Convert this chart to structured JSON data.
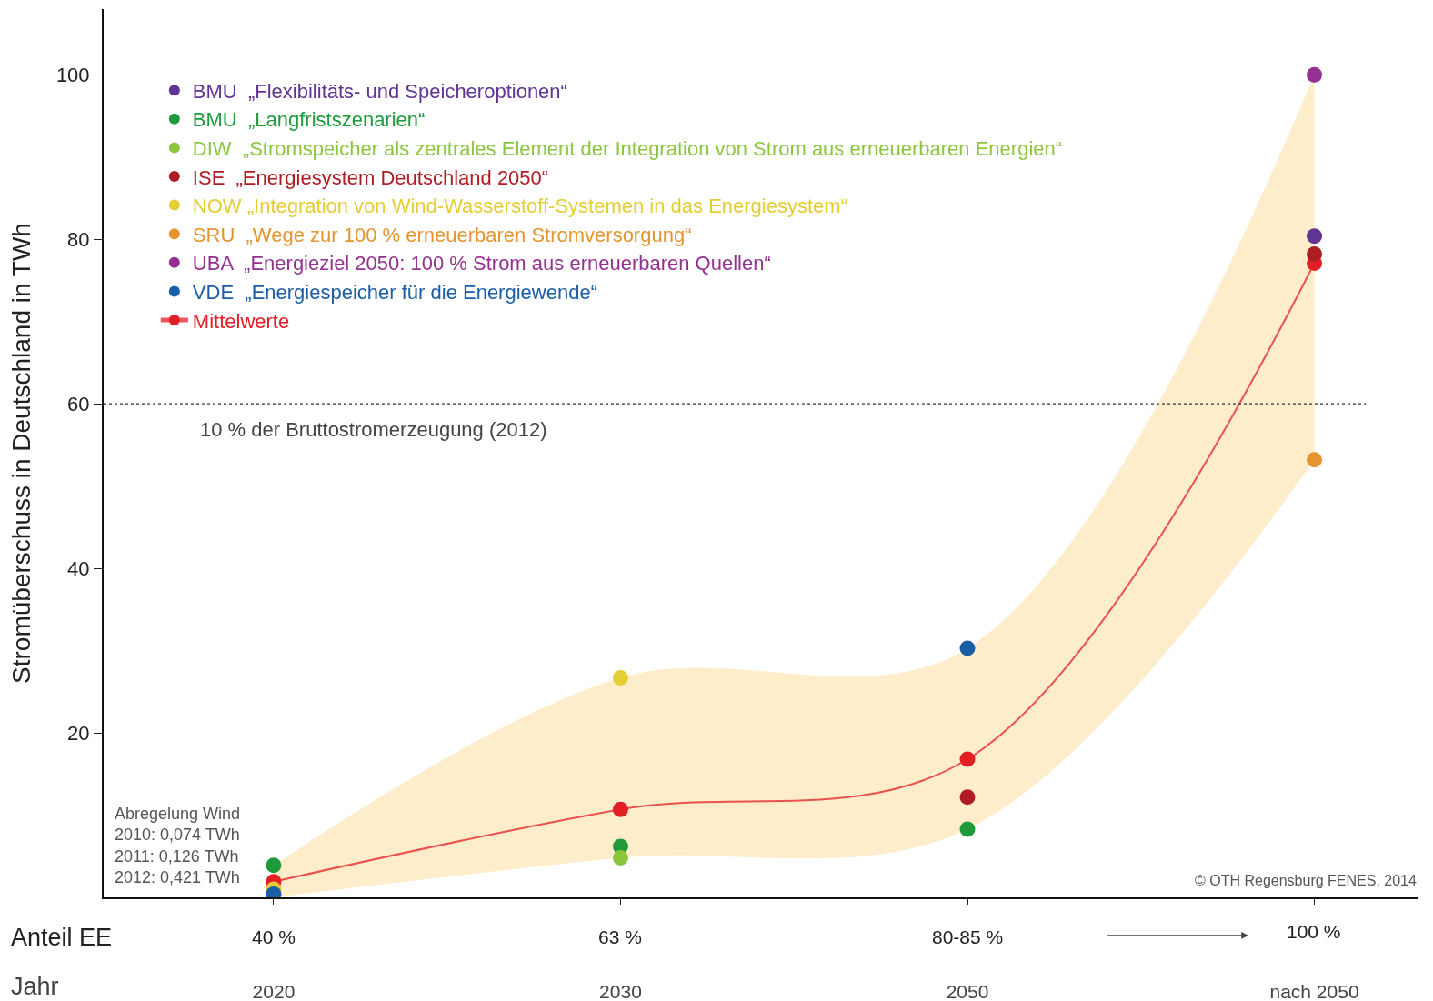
{
  "chart_data": {
    "type": "scatter",
    "categories": [
      "2020",
      "2030",
      "2050",
      "nach 2050"
    ],
    "xlabel": "Jahr",
    "ylabel": "Stromüberschuss in Deutschland in TWh",
    "ylim": [
      0,
      108
    ],
    "yticks": [
      20,
      40,
      60,
      80,
      100
    ],
    "grid": false,
    "legend": "top left",
    "marker": "circle",
    "series": [
      {
        "name": "BMU  „Flexibilitäts- und Speicheroptionen“",
        "color": "#5f3492",
        "values": [
          null,
          null,
          null,
          80.4
        ]
      },
      {
        "name": "BMU  „Langfristszenarien“",
        "color": "#1e9a3a",
        "values": [
          3.9,
          6.2,
          8.3,
          null
        ]
      },
      {
        "name": "DIW  „Stromspeicher als zentrales Element der Integration von Strom aus erneuerbaren Energien“",
        "color": "#8cc63f",
        "values": [
          null,
          4.8,
          null,
          null
        ]
      },
      {
        "name": "ISE  „Energiesystem Deutschland 2050“",
        "color": "#b01c24",
        "values": [
          null,
          null,
          12.2,
          78.2
        ]
      },
      {
        "name": "NOW „Integration von Wind-Wasserstoff-Systemen in das Energiesystem“",
        "color": "#e5cd35",
        "values": [
          1.0,
          26.7,
          null,
          null
        ]
      },
      {
        "name": "SRU  „Wege zur 100 % erneuerbaren Stromversorgung“",
        "color": "#e5952f",
        "values": [
          null,
          null,
          null,
          53.2
        ]
      },
      {
        "name": "UBA  „Energieziel 2050: 100 % Strom aus erneuerbaren Quellen“",
        "color": "#943092",
        "values": [
          null,
          null,
          null,
          100
        ]
      },
      {
        "name": "VDE  „Energiespeicher für die Energiewende“",
        "color": "#1b5ea8",
        "values": [
          0.4,
          null,
          30.3,
          null
        ]
      },
      {
        "name": "Mittelwerte",
        "type": "line",
        "color": "#e31e24",
        "values": [
          1.9,
          10.7,
          16.8,
          77.1
        ],
        "lower": [
          0,
          4.8,
          8.3,
          53.2
        ],
        "upper": [
          3.9,
          26.7,
          30.3,
          100
        ]
      }
    ],
    "ref_lines": [
      {
        "axis": "y",
        "value": 60,
        "label": "10 % der Bruttostromerzeugung (2012)",
        "color": "#333333",
        "line_style": "dotted"
      }
    ],
    "annotations": [
      "Abregelung Wind\n2010: 0,074 TWh\n2011: 0,126 TWh\n2012: 0,421 TWh",
      "© OTH Regensburg FENES, 2014",
      "Anteil EE",
      "40 %",
      "63 %",
      "80-85 %",
      "100 %"
    ]
  }
}
